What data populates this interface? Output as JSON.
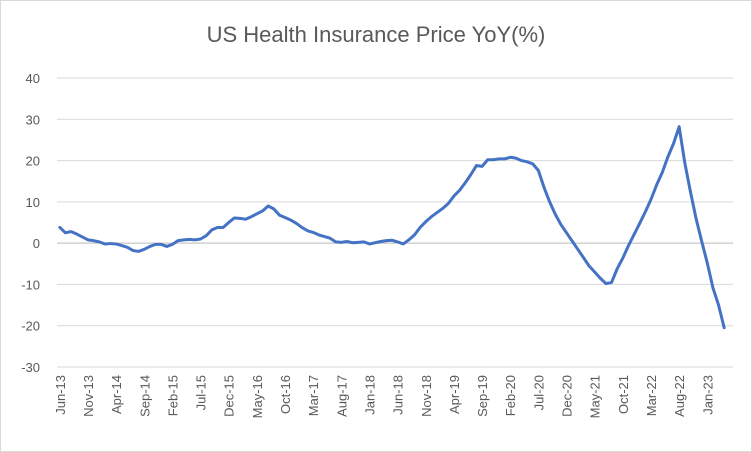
{
  "chart_data": {
    "type": "line",
    "title": "US Health Insurance Price YoY(%)",
    "categories": [
      "Jun-13",
      null,
      null,
      null,
      null,
      "Nov-13",
      null,
      null,
      null,
      null,
      "Apr-14",
      null,
      null,
      null,
      null,
      "Sep-14",
      null,
      null,
      null,
      null,
      "Feb-15",
      null,
      null,
      null,
      null,
      "Jul-15",
      null,
      null,
      null,
      null,
      "Dec-15",
      null,
      null,
      null,
      null,
      "May-16",
      null,
      null,
      null,
      null,
      "Oct-16",
      null,
      null,
      null,
      null,
      "Mar-17",
      null,
      null,
      null,
      null,
      "Aug-17",
      null,
      null,
      null,
      null,
      "Jan-18",
      null,
      null,
      null,
      null,
      "Jun-18",
      null,
      null,
      null,
      null,
      "Nov-18",
      null,
      null,
      null,
      null,
      "Apr-19",
      null,
      null,
      null,
      null,
      "Sep-19",
      null,
      null,
      null,
      null,
      "Feb-20",
      null,
      null,
      null,
      null,
      "Jul-20",
      null,
      null,
      null,
      null,
      "Dec-20",
      null,
      null,
      null,
      null,
      "May-21",
      null,
      null,
      null,
      null,
      "Oct-21",
      null,
      null,
      null,
      null,
      "Mar-22",
      null,
      null,
      null,
      null,
      "Aug-22",
      null,
      null,
      null,
      null,
      "Jan-23",
      null,
      null,
      null
    ],
    "values": [
      3.8,
      2.5,
      2.8,
      2.2,
      1.5,
      0.8,
      0.6,
      0.3,
      -0.2,
      -0.1,
      -0.2,
      -0.6,
      -1,
      -1.8,
      -2,
      -1.5,
      -0.8,
      -0.3,
      -0.3,
      -0.8,
      -0.3,
      0.6,
      0.8,
      0.9,
      0.8,
      1.0,
      1.8,
      3.2,
      3.8,
      3.8,
      5,
      6.1,
      6,
      5.8,
      6.4,
      7.1,
      7.8,
      9,
      8.3,
      6.8,
      6.2,
      5.6,
      4.8,
      3.8,
      3.0,
      2.6,
      2,
      1.6,
      1.2,
      0.3,
      0.2,
      0.4,
      0.1,
      0.2,
      0.3,
      -0.2,
      0.1,
      0.4,
      0.6,
      0.7,
      0.3,
      -0.2,
      0.8,
      2,
      3.8,
      5.2,
      6.4,
      7.4,
      8.4,
      9.6,
      11.4,
      12.8,
      14.6,
      16.6,
      18.8,
      18.6,
      20.2,
      20.2,
      20.4,
      20.4,
      20.8,
      20.6,
      20,
      19.7,
      19.2,
      17.6,
      13.5,
      10,
      7,
      4.5,
      2.5,
      0.5,
      -1.5,
      -3.5,
      -5.5,
      -7,
      -8.5,
      -9.8,
      -9.5,
      -6.2,
      -3.6,
      -0.6,
      2.1,
      4.8,
      7.6,
      10.6,
      14.1,
      17.1,
      20.9,
      24.1,
      28.2,
      19.5,
      12.5,
      6,
      0.5,
      -4.8,
      -10.8,
      -15,
      -20.5
    ],
    "color": "#4472c4",
    "ylim": [
      -30,
      40
    ],
    "yticks": [
      -30,
      -20,
      -10,
      0,
      10,
      20,
      30,
      40
    ],
    "grid": true
  }
}
